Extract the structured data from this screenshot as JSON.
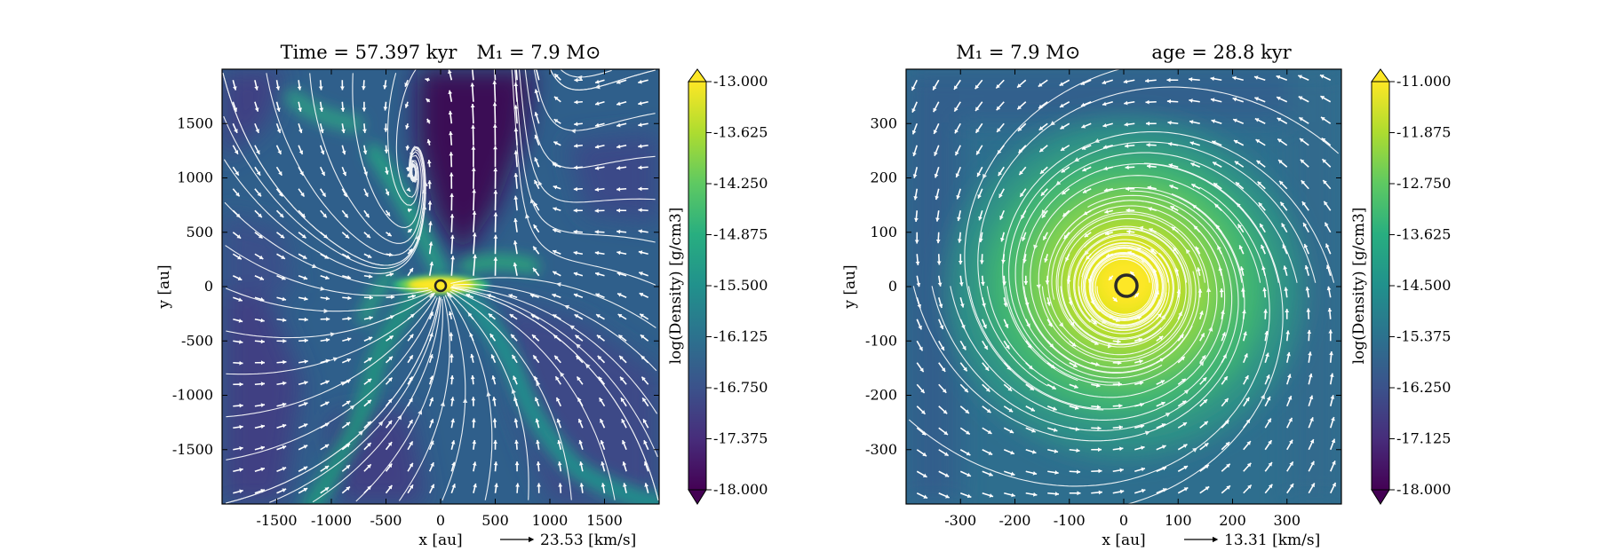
{
  "chart_data": [
    {
      "type": "heatmap",
      "title_left": "Time = 57.397 kyr",
      "title_right": "M₁ = 7.9 M⊙",
      "xlabel": "x [au]",
      "ylabel": "y [au]",
      "xlim": [
        -2000,
        2000
      ],
      "ylim": [
        -2000,
        2000
      ],
      "xticks": [
        -1500,
        -1000,
        -500,
        0,
        500,
        1000,
        1500
      ],
      "yticks": [
        -1500,
        -1000,
        -500,
        0,
        500,
        1000,
        1500
      ],
      "vector_scale_label": "23.53 [km/s]",
      "colorbar": {
        "label": "log(Density) [g/cm3]",
        "range": [
          -18.0,
          -13.0
        ],
        "ticks": [
          "-13.000",
          "-13.625",
          "-14.250",
          "-14.875",
          "-15.500",
          "-16.125",
          "-16.750",
          "-17.375",
          "-18.000"
        ],
        "colormap": "viridis"
      },
      "sink": {
        "x": 0,
        "y": 0
      },
      "morphology": "bipolar outflow cavity along +y with flattened dense disk along x"
    },
    {
      "type": "heatmap",
      "title_left": "M₁ = 7.9 M⊙",
      "title_right": "age = 28.8 kyr",
      "xlabel": "x [au]",
      "ylabel": "y [au]",
      "xlim": [
        -400,
        400
      ],
      "ylim": [
        -400,
        400
      ],
      "xticks": [
        -300,
        -200,
        -100,
        0,
        100,
        200,
        300
      ],
      "yticks": [
        -300,
        -200,
        -100,
        0,
        100,
        200,
        300
      ],
      "vector_scale_label": "13.31 [km/s]",
      "colorbar": {
        "label": "log(Density) [g/cm3]",
        "range": [
          -18.0,
          -11.0
        ],
        "ticks": [
          "-11.000",
          "-11.875",
          "-12.750",
          "-13.625",
          "-14.500",
          "-15.375",
          "-16.250",
          "-17.125",
          "-18.000"
        ],
        "colormap": "viridis"
      },
      "sink": {
        "x": 0,
        "y": 0
      },
      "morphology": "rotating disk with counter-clockwise flow around central sink"
    }
  ]
}
